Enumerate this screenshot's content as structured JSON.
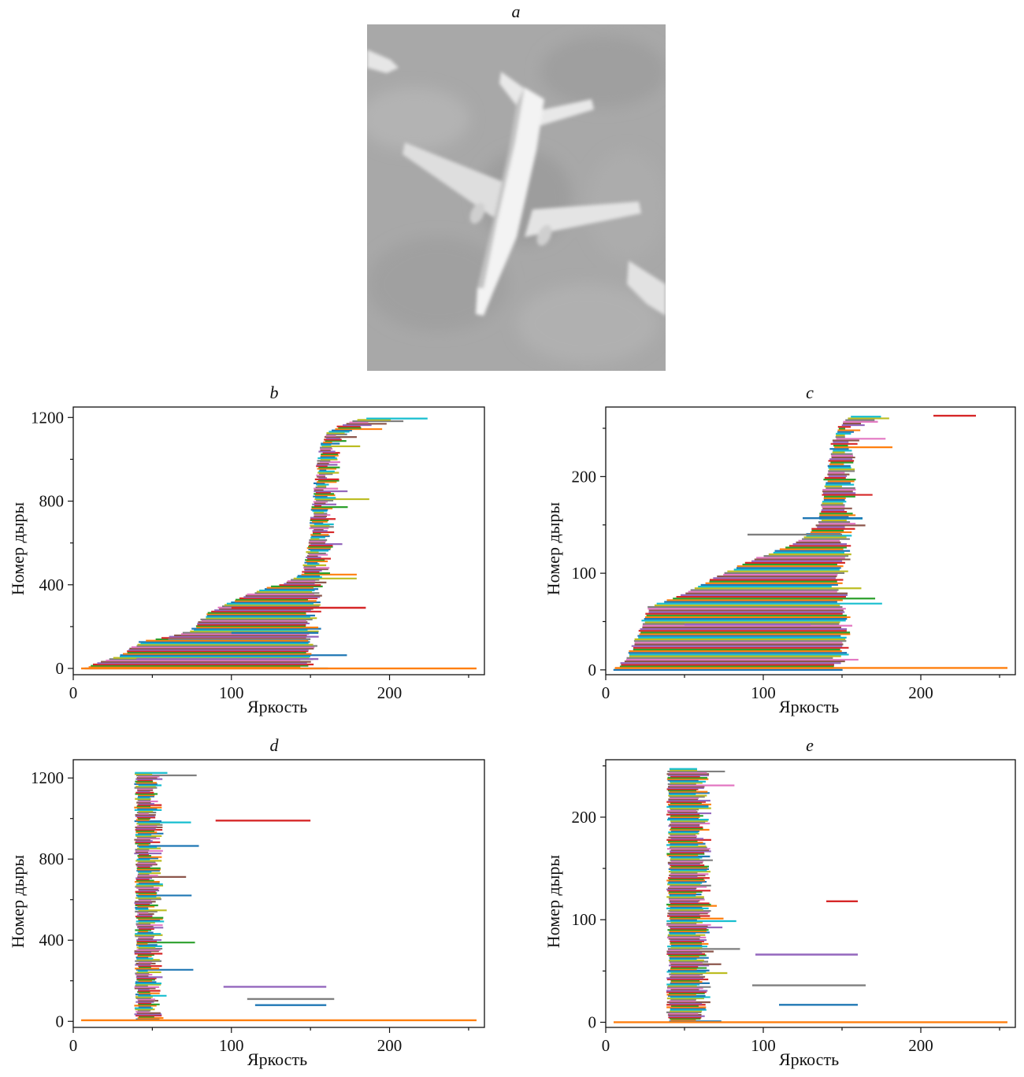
{
  "panels": {
    "a": "a",
    "b": "b",
    "c": "c",
    "d": "d",
    "e": "e"
  },
  "photo": {
    "icon": "airplane-aerial-photo",
    "ground_color": "#a9a9a9",
    "plane_color": "#f2f2f2"
  },
  "palette": [
    "#1f77b4",
    "#ff7f0e",
    "#2ca02c",
    "#d62728",
    "#9467bd",
    "#8c564b",
    "#e377c2",
    "#7f7f7f",
    "#bcbd22",
    "#17becf"
  ],
  "chart_data": [
    {
      "id": "b",
      "type": "line",
      "xlabel": "Яркость",
      "ylabel": "Номер дыры",
      "xlim": [
        0,
        260
      ],
      "ylim": [
        -30,
        1250
      ],
      "xticks": [
        0,
        100,
        200
      ],
      "yticks": [
        0,
        400,
        800,
        1200
      ],
      "start_curve": [
        [
          6,
          0
        ],
        [
          30,
          60
        ],
        [
          43,
          130
        ],
        [
          60,
          150
        ],
        [
          75,
          180
        ],
        [
          85,
          260
        ],
        [
          100,
          320
        ],
        [
          120,
          380
        ],
        [
          135,
          410
        ],
        [
          145,
          450
        ],
        [
          150,
          600
        ],
        [
          152,
          800
        ],
        [
          155,
          1000
        ],
        [
          160,
          1130
        ],
        [
          175,
          1180
        ],
        [
          185,
          1195
        ]
      ],
      "end_curve": [
        [
          145,
          0
        ],
        [
          150,
          150
        ],
        [
          150,
          300
        ],
        [
          155,
          420
        ],
        [
          158,
          600
        ],
        [
          160,
          800
        ],
        [
          163,
          1000
        ],
        [
          168,
          1120
        ],
        [
          183,
          1180
        ],
        [
          252,
          1210
        ]
      ],
      "n_bars": 190,
      "long_bars": [
        [
          5,
          255,
          0
        ],
        [
          40,
          155,
          45
        ],
        [
          60,
          150,
          140
        ],
        [
          100,
          155,
          170
        ],
        [
          100,
          185,
          290
        ]
      ]
    },
    {
      "id": "c",
      "type": "line",
      "xlabel": "Яркость",
      "ylabel": "Номер дыры",
      "xlim": [
        0,
        260
      ],
      "ylim": [
        -5,
        272
      ],
      "xticks": [
        0,
        100,
        200
      ],
      "yticks": [
        0,
        100,
        200
      ],
      "start_curve": [
        [
          6,
          0
        ],
        [
          15,
          15
        ],
        [
          22,
          40
        ],
        [
          27,
          65
        ],
        [
          45,
          75
        ],
        [
          75,
          100
        ],
        [
          95,
          115
        ],
        [
          120,
          130
        ],
        [
          135,
          150
        ],
        [
          140,
          200
        ],
        [
          145,
          240
        ],
        [
          150,
          258
        ],
        [
          155,
          262
        ]
      ],
      "end_curve": [
        [
          145,
          0
        ],
        [
          150,
          30
        ],
        [
          150,
          70
        ],
        [
          145,
          90
        ],
        [
          150,
          120
        ],
        [
          152,
          150
        ],
        [
          153,
          200
        ],
        [
          155,
          250
        ],
        [
          177,
          262
        ]
      ],
      "n_bars": 150,
      "long_bars": [
        [
          6,
          255,
          2
        ],
        [
          50,
          130,
          47
        ],
        [
          90,
          150,
          140
        ],
        [
          125,
          163,
          157
        ],
        [
          208,
          235,
          263
        ]
      ]
    },
    {
      "id": "d",
      "type": "line",
      "xlabel": "Яркость",
      "ylabel": "Номер дыры",
      "xlim": [
        0,
        260
      ],
      "ylim": [
        -30,
        1290
      ],
      "xticks": [
        0,
        100,
        200
      ],
      "yticks": [
        0,
        400,
        800,
        1200
      ],
      "start_curve": [
        [
          40,
          1225
        ],
        [
          45,
          1200
        ],
        [
          60,
          1170
        ],
        [
          85,
          1160
        ],
        [
          100,
          1100
        ],
        [
          120,
          1000
        ],
        [
          145,
          985
        ],
        [
          150,
          900
        ],
        [
          152,
          700
        ],
        [
          155,
          500
        ],
        [
          157,
          300
        ],
        [
          160,
          150
        ],
        [
          165,
          100
        ],
        [
          190,
          80
        ],
        [
          235,
          60
        ],
        [
          245,
          40
        ],
        [
          250,
          10
        ]
      ],
      "end_curve": [
        [
          50,
          1225
        ],
        [
          55,
          1200
        ],
        [
          70,
          1175
        ],
        [
          95,
          1160
        ],
        [
          110,
          1100
        ],
        [
          130,
          1005
        ],
        [
          150,
          985
        ],
        [
          155,
          900
        ],
        [
          160,
          700
        ],
        [
          163,
          500
        ],
        [
          167,
          300
        ],
        [
          175,
          150
        ],
        [
          200,
          110
        ],
        [
          245,
          60
        ],
        [
          255,
          20
        ],
        [
          255,
          0
        ]
      ],
      "n_bars": 200,
      "long_bars": [
        [
          5,
          255,
          5
        ],
        [
          95,
          160,
          170
        ],
        [
          110,
          165,
          110
        ],
        [
          115,
          160,
          80
        ],
        [
          90,
          150,
          990
        ]
      ]
    },
    {
      "id": "e",
      "type": "line",
      "xlabel": "Яркость",
      "ylabel": "Номер дыры",
      "xlim": [
        0,
        260
      ],
      "ylim": [
        -5,
        256
      ],
      "xticks": [
        0,
        100,
        200
      ],
      "yticks": [
        0,
        100,
        200
      ],
      "start_curve": [
        [
          40,
          247
        ],
        [
          60,
          243
        ],
        [
          80,
          240
        ],
        [
          100,
          225
        ],
        [
          120,
          220
        ],
        [
          145,
          215
        ],
        [
          150,
          200
        ],
        [
          152,
          150
        ],
        [
          155,
          100
        ],
        [
          157,
          60
        ],
        [
          160,
          40
        ],
        [
          165,
          30
        ],
        [
          175,
          20
        ],
        [
          200,
          10
        ],
        [
          230,
          5
        ],
        [
          250,
          1
        ]
      ],
      "end_curve": [
        [
          60,
          247
        ],
        [
          70,
          243
        ],
        [
          90,
          240
        ],
        [
          110,
          228
        ],
        [
          140,
          220
        ],
        [
          160,
          212
        ],
        [
          165,
          200
        ],
        [
          170,
          150
        ],
        [
          172,
          100
        ],
        [
          175,
          70
        ],
        [
          180,
          50
        ],
        [
          200,
          30
        ],
        [
          230,
          15
        ],
        [
          245,
          8
        ],
        [
          255,
          1
        ]
      ],
      "n_bars": 200,
      "long_bars": [
        [
          5,
          255,
          0
        ],
        [
          95,
          160,
          66
        ],
        [
          93,
          165,
          36
        ],
        [
          110,
          160,
          17
        ],
        [
          140,
          160,
          118
        ]
      ]
    }
  ]
}
